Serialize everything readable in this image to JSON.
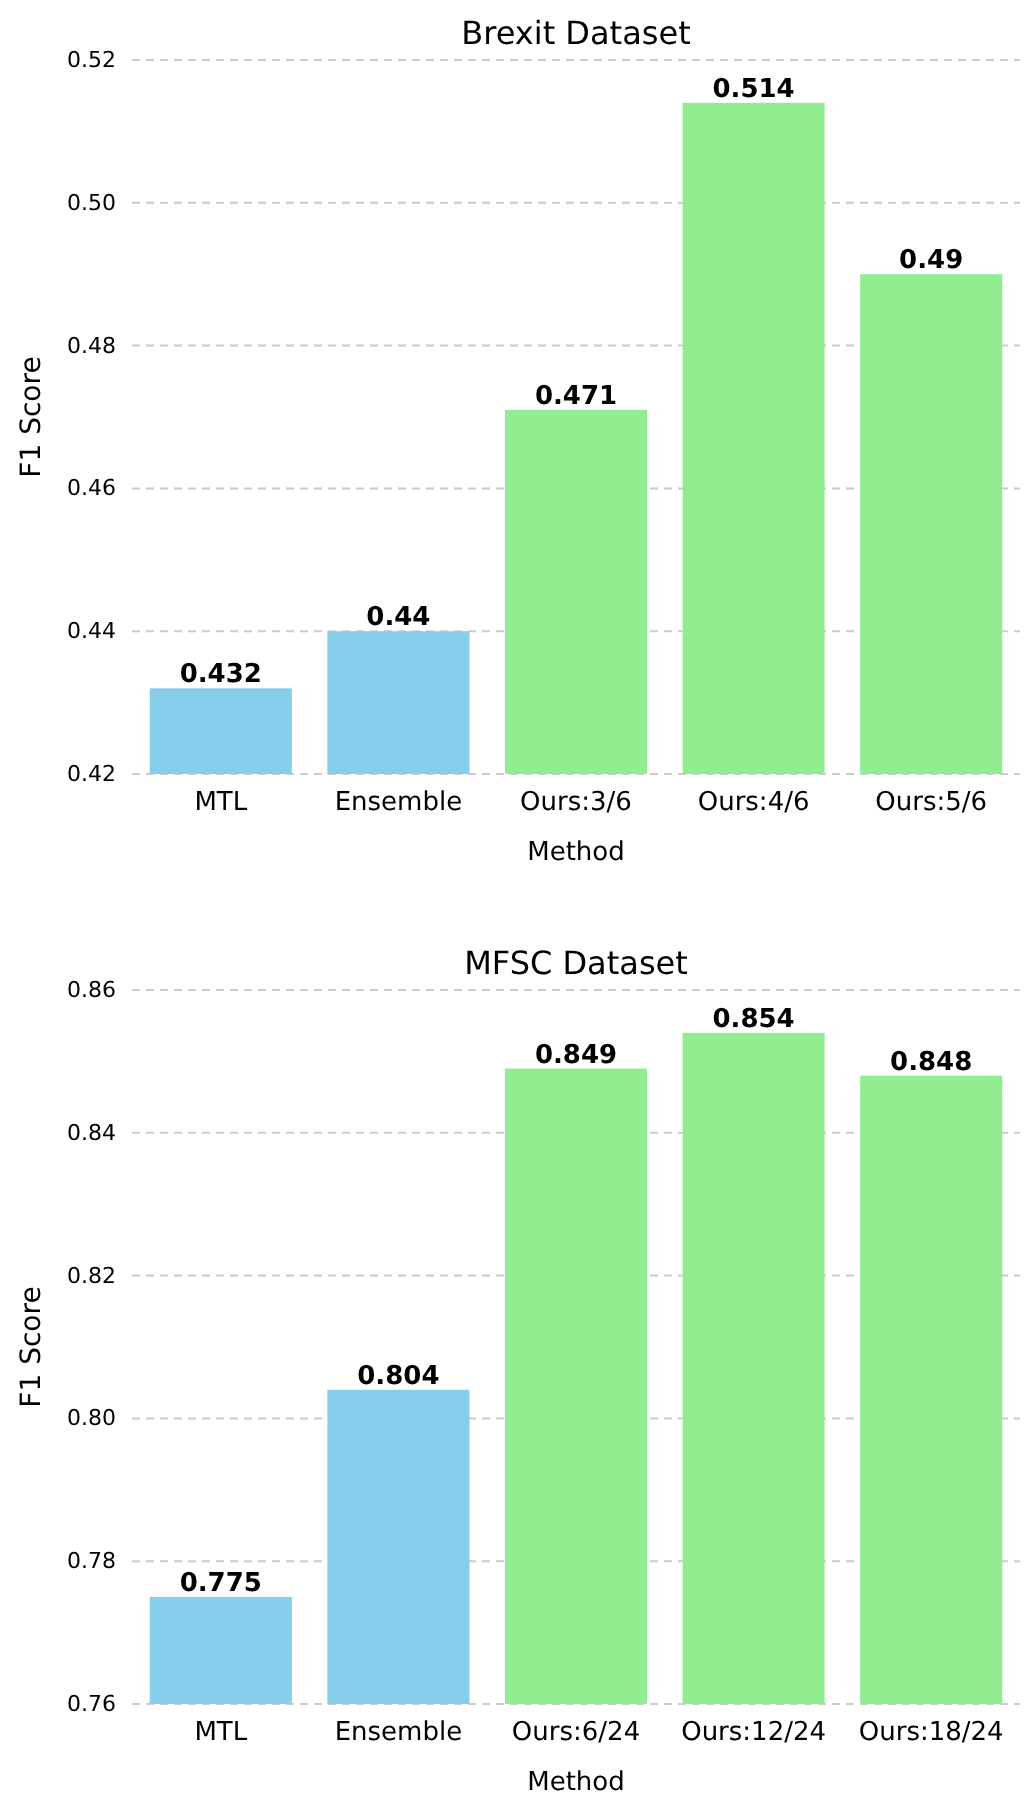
{
  "chart_data": [
    {
      "type": "bar",
      "title": "Brexit Dataset",
      "xlabel": "Method",
      "ylabel": "F1 Score",
      "categories": [
        "MTL",
        "Ensemble",
        "Ours:3/6",
        "Ours:4/6",
        "Ours:5/6"
      ],
      "values": [
        0.432,
        0.44,
        0.471,
        0.514,
        0.49
      ],
      "colors": [
        "#87ceeb",
        "#87ceeb",
        "#90ee90",
        "#90ee90",
        "#90ee90"
      ],
      "ylim": [
        0.42,
        0.52
      ],
      "yticks": [
        {
          "value": 0.42,
          "label": "0.42"
        },
        {
          "value": 0.44,
          "label": "0.44"
        },
        {
          "value": 0.46,
          "label": "0.46"
        },
        {
          "value": 0.48,
          "label": "0.48"
        },
        {
          "value": 0.5,
          "label": "0.50"
        },
        {
          "value": 0.52,
          "label": "0.52"
        }
      ],
      "grid": "y",
      "data_labels": true
    },
    {
      "type": "bar",
      "title": "MFSC Dataset",
      "xlabel": "Method",
      "ylabel": "F1 Score",
      "categories": [
        "MTL",
        "Ensemble",
        "Ours:6/24",
        "Ours:12/24",
        "Ours:18/24"
      ],
      "values": [
        0.775,
        0.804,
        0.849,
        0.854,
        0.848
      ],
      "colors": [
        "#87ceeb",
        "#87ceeb",
        "#90ee90",
        "#90ee90",
        "#90ee90"
      ],
      "ylim": [
        0.76,
        0.86
      ],
      "yticks": [
        {
          "value": 0.76,
          "label": "0.76"
        },
        {
          "value": 0.78,
          "label": "0.78"
        },
        {
          "value": 0.8,
          "label": "0.80"
        },
        {
          "value": 0.82,
          "label": "0.82"
        },
        {
          "value": 0.84,
          "label": "0.84"
        },
        {
          "value": 0.86,
          "label": "0.86"
        }
      ],
      "grid": "y",
      "data_labels": true
    }
  ]
}
